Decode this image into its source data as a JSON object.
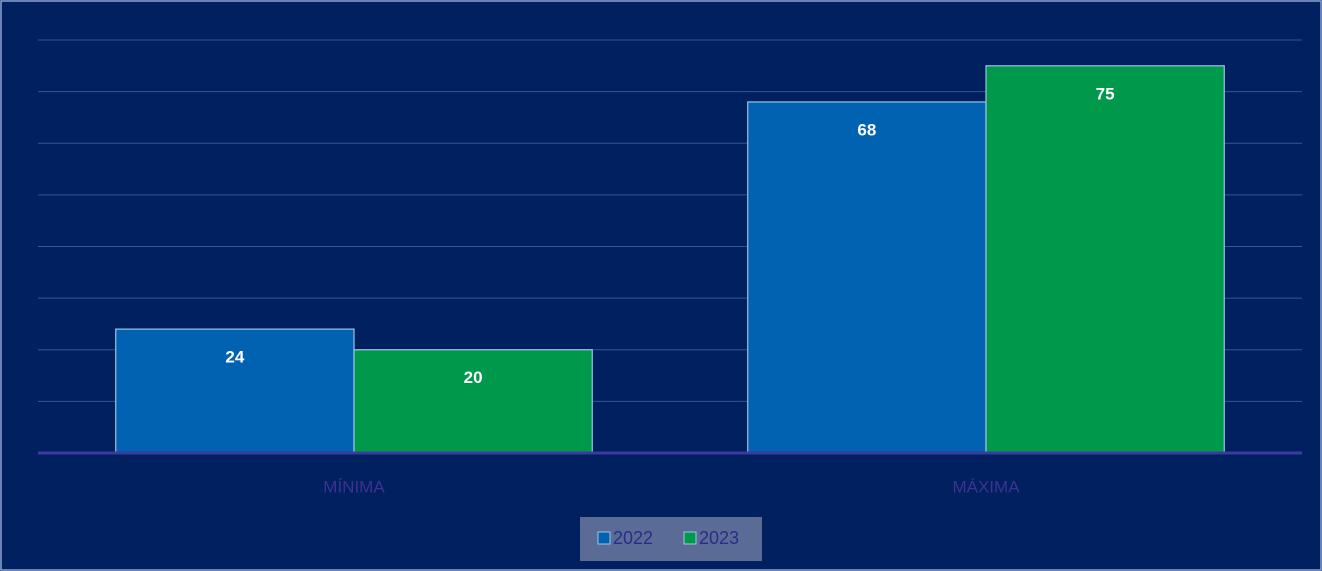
{
  "chart_data": {
    "type": "bar",
    "categories": [
      "MÍNIMA",
      "MÁXIMA"
    ],
    "series": [
      {
        "name": "2022",
        "color": "#0062b0",
        "values": [
          24,
          68
        ]
      },
      {
        "name": "2023",
        "color": "#00994c",
        "values": [
          20,
          75
        ]
      }
    ],
    "ylim": [
      0,
      80
    ],
    "yticks": [
      0,
      10,
      20,
      30,
      40,
      50,
      60,
      70,
      80
    ],
    "grid": true,
    "legend": "bottom"
  }
}
